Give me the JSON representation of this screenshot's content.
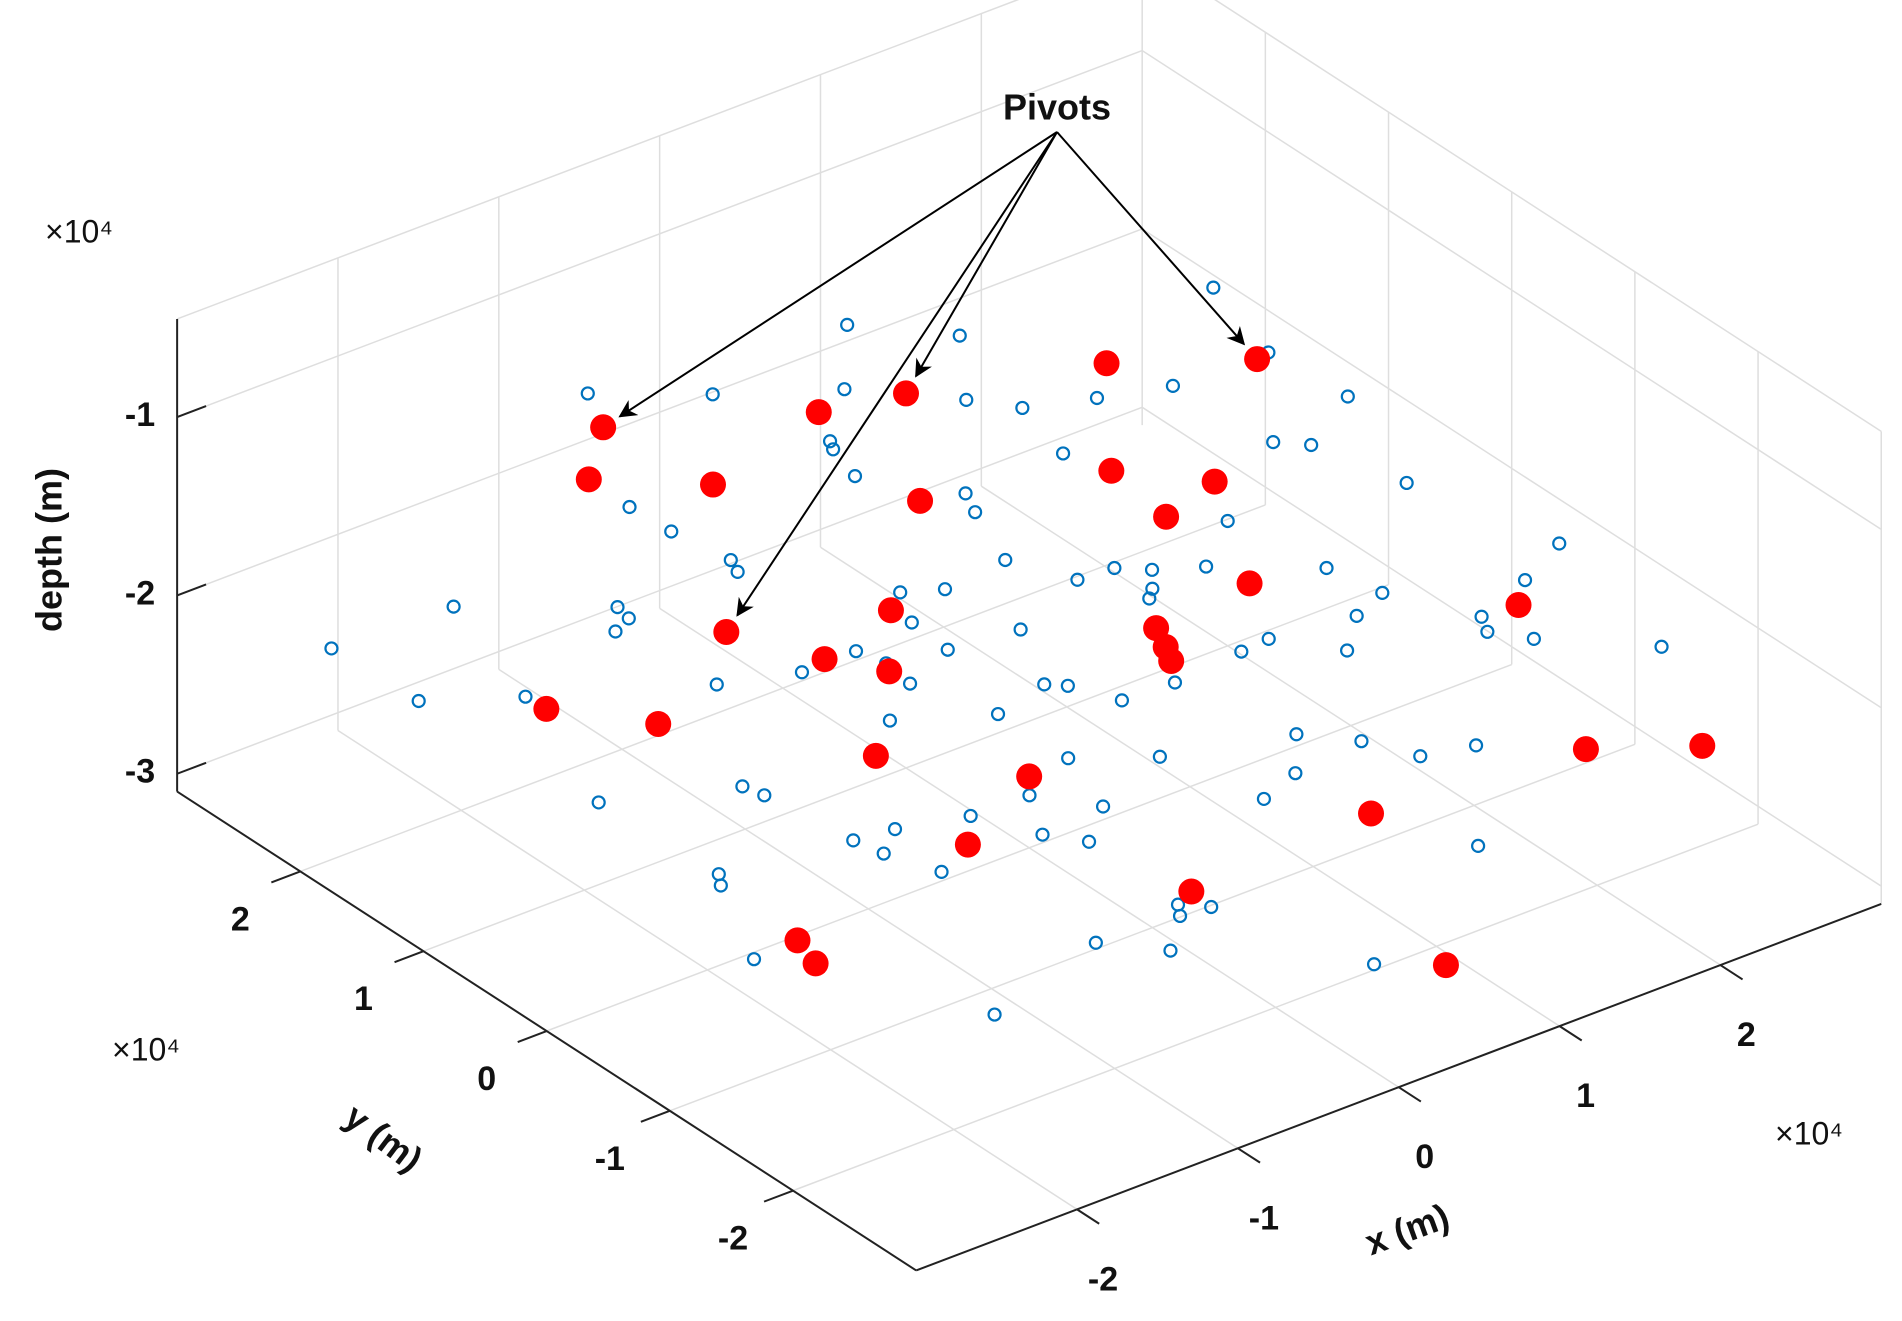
{
  "chart_data": {
    "type": "scatter3d",
    "annotation": "Pivots",
    "xlabel": "x (m)",
    "ylabel": "y (m)",
    "zlabel": "depth (m)",
    "x_exponent": "×10⁴",
    "y_exponent": "×10⁴",
    "z_exponent": "×10⁴",
    "xlim": [
      -3,
      3
    ],
    "ylim": [
      -3,
      3
    ],
    "zlim": [
      -3.1,
      -0.45
    ],
    "xticks": [
      -2,
      -1,
      0,
      1,
      2
    ],
    "yticks": [
      -2,
      -1,
      0,
      1,
      2
    ],
    "zticks": [
      -3,
      -2,
      -1
    ],
    "grid": true,
    "series": [
      {
        "color": "#0072bd",
        "marker": "open",
        "x": [
          0.1,
          -0.5,
          0.6,
          -1.2,
          1.3,
          0.0,
          -1.8,
          1.9,
          -0.3,
          0.8,
          -0.9,
          1.1,
          -0.2,
          0.4,
          -1.5,
          2.2,
          -2.1,
          0.7,
          -0.6,
          1.5,
          -1.0,
          0.3,
          -0.4,
          1.7,
          -2.4,
          0.9,
          -1.3,
          2.0,
          -0.8,
          0.2,
          1.2,
          -1.7,
          0.5,
          -0.1,
          2.5,
          -2.2,
          1.0,
          -0.7,
          0.6,
          -1.4,
          1.6,
          -0.3,
          0.9,
          -1.1,
          1.4,
          -1.9,
          0.0,
          0.4,
          -0.6,
          2.3,
          -2.6,
          1.8,
          -0.4,
          0.7,
          -1.6,
          1.1,
          -0.9,
          2.7,
          -2.0,
          0.1,
          0.3,
          -0.2,
          0.5,
          -0.5,
          0.2,
          -0.8,
          0.8,
          1.3,
          -1.2,
          0.0,
          1.5,
          -1.4,
          0.6,
          -0.3,
          0.9,
          -0.7,
          1.9,
          -1.8,
          0.2,
          -0.1,
          2.1,
          -2.3,
          1.0,
          -1.0,
          1.2,
          -0.5,
          0.4,
          -1.6,
          2.9,
          -2.8,
          1.6,
          -0.6,
          0.8,
          -1.5,
          2.4,
          -2.5,
          0.0,
          2.6,
          -1.9,
          1.3
        ],
        "y": [
          0.2,
          0.3,
          -0.4,
          0.8,
          -1.0,
          1.5,
          -0.2,
          0.5,
          -1.6,
          1.1,
          -0.7,
          0.0,
          0.9,
          -1.2,
          1.4,
          -0.8,
          0.6,
          0.6,
          -1.1,
          1.3,
          0.1,
          -0.3,
          1.9,
          -1.5,
          -0.9,
          -2.0,
          -1.7,
          1.0,
          2.2,
          -0.8,
          0.4,
          0.3,
          1.7,
          -2.3,
          0.2,
          1.8,
          -0.6,
          0.5,
          2.4,
          -0.4,
          -0.2,
          -0.5,
          0.9,
          1.1,
          -1.8,
          -1.3,
          -1.0,
          0.4,
          -0.1,
          -1.3,
          0.1,
          1.8,
          -2.0,
          -1.5,
          2.0,
          2.0,
          -2.4,
          -0.5,
          -1.9,
          2.7,
          0.0,
          0.4,
          -0.1,
          -0.4,
          0.7,
          0.8,
          -0.9,
          0.7,
          -0.6,
          -0.6,
          -0.7,
          0.5,
          1.3,
          1.2,
          0.2,
          -1.4,
          -0.1,
          0.9,
          -1.9,
          1.0,
          0.8,
          -0.5,
          1.5,
          1.6,
          -1.3,
          -1.8,
          2.0,
          -1.0,
          1.2,
          1.3,
          2.6,
          2.8,
          -2.6,
          -2.5,
          -2.0,
          2.4,
          -2.8,
          1.9,
          -2.2,
          -2.4
        ],
        "z": [
          -2.0,
          -1.8,
          -2.2,
          -1.5,
          -2.5,
          -1.2,
          -2.1,
          -1.7,
          -2.6,
          -1.4,
          -2.3,
          -1.9,
          -2.4,
          -1.6,
          -2.0,
          -2.2,
          -1.3,
          -2.7,
          -1.9,
          -2.1,
          -1.7,
          -1.5,
          -2.2,
          -1.8,
          -2.5,
          -2.0,
          -1.6,
          -2.4,
          -1.9,
          -2.3,
          -1.1,
          -2.8,
          -2.6,
          -1.4,
          -2.0,
          -1.8,
          -2.9,
          -1.0,
          -2.1,
          -2.4,
          -1.3,
          -2.7,
          -1.6,
          -2.3,
          -2.2,
          -1.9,
          -1.2,
          -2.5,
          -1.4,
          -1.6,
          -2.0,
          -2.0,
          -2.4,
          -1.1,
          -2.6,
          -1.5,
          -2.1,
          -2.3,
          -1.7,
          -1.8,
          -1.7,
          -2.1,
          -2.4,
          -2.0,
          -1.6,
          -2.2,
          -1.8,
          -2.3,
          -1.5,
          -2.6,
          -2.0,
          -2.5,
          -1.9,
          -1.3,
          -2.1,
          -2.2,
          -2.6,
          -1.6,
          -1.9,
          -2.8,
          -1.4,
          -2.3,
          -2.5,
          -1.7,
          -1.5,
          -2.7,
          -1.2,
          -2.0,
          -2.1,
          -1.9,
          -2.3,
          -1.6,
          -2.2,
          -2.0,
          -1.9,
          -2.2,
          -2.5,
          -1.7,
          -2.4,
          -1.3
        ]
      },
      {
        "color": "#ff0000",
        "marker": "filled",
        "x": [
          -1.5,
          0.0,
          -1.5,
          1.8,
          0.5,
          -0.8,
          1.2,
          -1.3,
          0.9,
          -0.2,
          1.6,
          -2.0,
          0.3,
          -0.6,
          2.2,
          -1.7,
          0.1,
          -0.4,
          1.0,
          -1.1,
          2.5,
          -2.4,
          0.7,
          -0.9,
          1.7,
          0.0,
          -1.9,
          2.0,
          -0.3,
          1.4,
          -1.2,
          0.6
        ],
        "y": [
          1.5,
          1.0,
          0.5,
          0.5,
          -0.5,
          0.2,
          0.9,
          -1.2,
          -1.6,
          1.4,
          0.3,
          0.4,
          2.1,
          -2.1,
          -1.1,
          1.7,
          -0.9,
          0.6,
          -0.2,
          -0.3,
          -2.2,
          -1.4,
          1.8,
          2.4,
          -2.3,
          0.0,
          -0.6,
          1.5,
          -1.5,
          1.2,
          1.0,
          -2.6
        ],
        "z": [
          -0.9,
          -1.0,
          -1.6,
          -1.2,
          -2.0,
          -2.4,
          -1.8,
          -2.1,
          -2.5,
          -2.6,
          -2.3,
          -1.9,
          -1.7,
          -2.2,
          -2.0,
          -2.5,
          -1.5,
          -1.9,
          -1.3,
          -1.6,
          -2.4,
          -2.3,
          -2.2,
          -1.8,
          -2.1,
          -2.7,
          -2.7,
          -2.6,
          -1.2,
          -1.4,
          -1.1,
          -2.8
        ]
      }
    ]
  }
}
